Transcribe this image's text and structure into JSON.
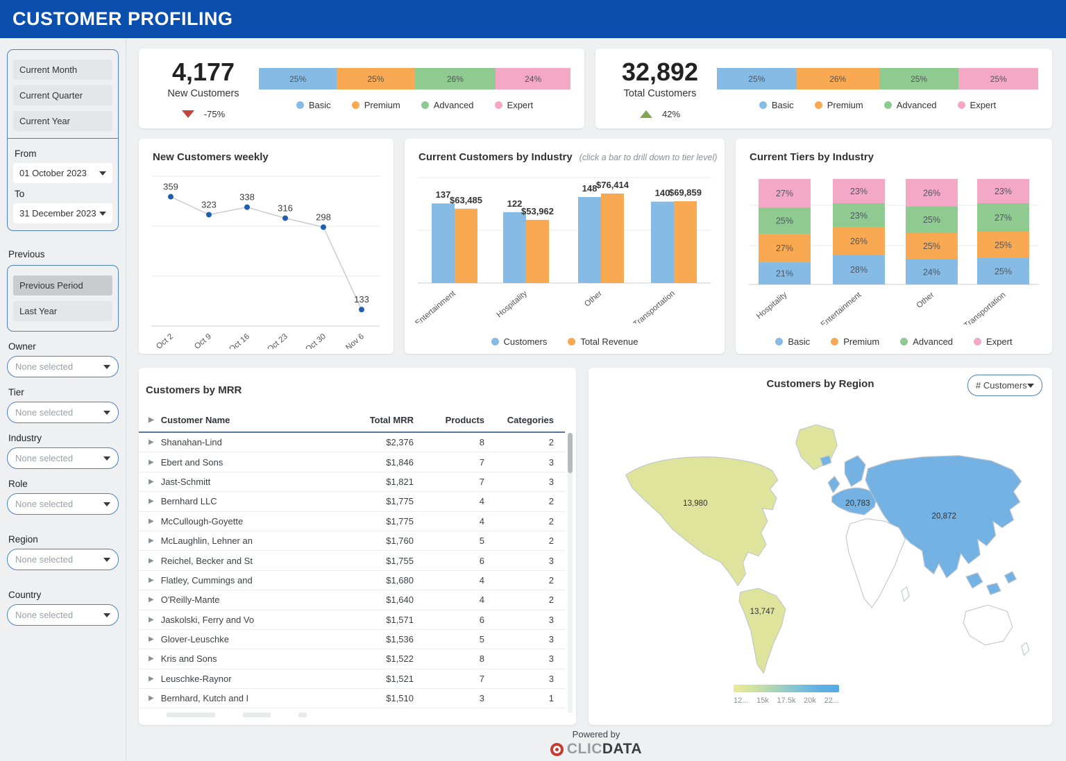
{
  "header": {
    "title": "CUSTOMER PROFILING"
  },
  "sidebar": {
    "period_buttons": [
      "Current Month",
      "Current Quarter",
      "Current Year"
    ],
    "from_label": "From",
    "from_value": "01 October 2023",
    "to_label": "To",
    "to_value": "31 December 2023",
    "previous_label": "Previous",
    "previous_buttons": [
      "Previous Period",
      "Last Year"
    ],
    "filters": [
      {
        "label": "Owner",
        "value": "None selected"
      },
      {
        "label": "Tier",
        "value": "None selected"
      },
      {
        "label": "Industry",
        "value": "None selected"
      },
      {
        "label": "Role",
        "value": "None selected"
      },
      {
        "label": "Region",
        "value": "None selected"
      },
      {
        "label": "Country",
        "value": "None selected"
      }
    ]
  },
  "tier_labels": [
    "Basic",
    "Premium",
    "Advanced",
    "Expert"
  ],
  "tier_colors": [
    "#85bbe5",
    "#f8a952",
    "#8fca91",
    "#f3a9c6"
  ],
  "kpi_new": {
    "value": "4,177",
    "label": "New Customers",
    "delta": "-75%",
    "delta_dir": "down",
    "segments": [
      25,
      25,
      26,
      24
    ],
    "segment_labels": [
      "25%",
      "25%",
      "26%",
      "24%"
    ]
  },
  "kpi_total": {
    "value": "32,892",
    "label": "Total Customers",
    "delta": "42%",
    "delta_dir": "up",
    "segments": [
      25,
      26,
      25,
      25
    ],
    "segment_labels": [
      "25%",
      "26%",
      "25%",
      "25%"
    ]
  },
  "titles": {
    "weekly": "New Customers weekly",
    "industry": "Current Customers by Industry",
    "industry_note": "(click a bar to drill down to tier level)",
    "tiers": "Current Tiers by Industry",
    "mrr": "Customers by MRR",
    "map": "Customers by Region"
  },
  "chart_data": [
    {
      "id": "weekly",
      "type": "line",
      "title": "New Customers weekly",
      "x": [
        "Oct 2",
        "Oct 9",
        "Oct 16",
        "Oct 23",
        "Oct 30",
        "Nov 6"
      ],
      "values": [
        359,
        323,
        338,
        316,
        298,
        133
      ],
      "ylim": [
        100,
        400
      ],
      "grid": true,
      "point_color": "#1f5fae",
      "line_color": "#c9ccd1"
    },
    {
      "id": "industry",
      "type": "bar",
      "title": "Current Customers by Industry",
      "subtitle": "(click a bar to drill down to tier level)",
      "categories": [
        "Entertainment",
        "Hospitality",
        "Other",
        "Transportation"
      ],
      "series": [
        {
          "name": "Customers",
          "color": "#85bbe5",
          "values": [
            137,
            122,
            148,
            140
          ],
          "labels": [
            "137",
            "122",
            "148",
            "140"
          ],
          "axis_max": 148
        },
        {
          "name": "Total Revenue",
          "color": "#f8a952",
          "values": [
            63485,
            53962,
            76414,
            69859
          ],
          "labels": [
            "$63,485",
            "$53,962",
            "$76,414",
            "$69,859"
          ],
          "axis_max": 76414
        }
      ],
      "legend_position": "bottom"
    },
    {
      "id": "tiers",
      "type": "bar",
      "stacked": true,
      "title": "Current Tiers by Industry",
      "categories": [
        "Hospitality",
        "Entertainment",
        "Other",
        "Transportation"
      ],
      "series": [
        {
          "name": "Basic",
          "values": [
            21,
            28,
            24,
            25
          ]
        },
        {
          "name": "Premium",
          "values": [
            27,
            26,
            25,
            25
          ]
        },
        {
          "name": "Advanced",
          "values": [
            25,
            23,
            25,
            27
          ]
        },
        {
          "name": "Expert",
          "values": [
            27,
            23,
            26,
            23
          ]
        }
      ],
      "unit": "%",
      "legend_position": "bottom"
    },
    {
      "id": "region_map",
      "type": "heatmap",
      "title": "Customers by Region",
      "regions": [
        {
          "name": "North America",
          "value": 13980
        },
        {
          "name": "South America",
          "value": 13747
        },
        {
          "name": "Europe",
          "value": 20783
        },
        {
          "name": "Asia",
          "value": 20872
        }
      ],
      "legend_ticks": [
        "12...",
        "15k",
        "17.5k",
        "20k",
        "22..."
      ]
    }
  ],
  "mrr_table": {
    "columns": [
      "Customer Name",
      "Total MRR",
      "Products",
      "Categories"
    ],
    "rows": [
      {
        "name": "Shanahan-Lind",
        "mrr": "$2,376",
        "products": "8",
        "categories": "2"
      },
      {
        "name": "Ebert and Sons",
        "mrr": "$1,846",
        "products": "7",
        "categories": "3"
      },
      {
        "name": "Jast-Schmitt",
        "mrr": "$1,821",
        "products": "7",
        "categories": "3"
      },
      {
        "name": "Bernhard LLC",
        "mrr": "$1,775",
        "products": "4",
        "categories": "2"
      },
      {
        "name": "McCullough-Goyette",
        "mrr": "$1,775",
        "products": "4",
        "categories": "2"
      },
      {
        "name": "McLaughlin, Lehner an",
        "mrr": "$1,760",
        "products": "5",
        "categories": "2"
      },
      {
        "name": "Reichel, Becker and St",
        "mrr": "$1,755",
        "products": "6",
        "categories": "3"
      },
      {
        "name": "Flatley, Cummings and",
        "mrr": "$1,680",
        "products": "4",
        "categories": "2"
      },
      {
        "name": "O'Reilly-Mante",
        "mrr": "$1,640",
        "products": "4",
        "categories": "2"
      },
      {
        "name": "Jaskolski, Ferry and Vo",
        "mrr": "$1,571",
        "products": "6",
        "categories": "3"
      },
      {
        "name": "Glover-Leuschke",
        "mrr": "$1,536",
        "products": "5",
        "categories": "3"
      },
      {
        "name": "Kris and Sons",
        "mrr": "$1,522",
        "products": "8",
        "categories": "3"
      },
      {
        "name": "Leuschke-Raynor",
        "mrr": "$1,521",
        "products": "7",
        "categories": "3"
      },
      {
        "name": "Bernhard, Kutch and I",
        "mrr": "$1,510",
        "products": "3",
        "categories": "1"
      }
    ]
  },
  "map": {
    "dropdown": "# Customers",
    "values": {
      "na": "13,980",
      "sa": "13,747",
      "europe": "20,783",
      "asia": "20,872"
    },
    "legend_ticks": [
      "12...",
      "15k",
      "17.5k",
      "20k",
      "22..."
    ],
    "colors": {
      "americas": "#dfe49c",
      "eurasia": "#74b2e4",
      "neutral": "#ffffff",
      "stroke": "#c2c6ca"
    }
  },
  "footer": {
    "powered_by": "Powered by",
    "brand_gray": "CLIC",
    "brand_dark": "DATA"
  }
}
